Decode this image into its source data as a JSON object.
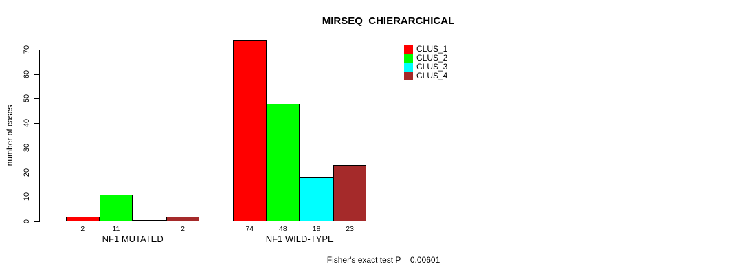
{
  "title": "MIRSEQ_CHIERARCHICAL",
  "chart_data": {
    "type": "bar",
    "title": "MIRSEQ_CHIERARCHICAL",
    "xlabel": "",
    "ylabel": "number of cases",
    "ylim": [
      0,
      70
    ],
    "yticks": [
      0,
      10,
      20,
      30,
      40,
      50,
      60,
      70
    ],
    "grid": false,
    "legend_position": "top-right",
    "categories": [
      "NF1 MUTATED",
      "NF1 WILD-TYPE"
    ],
    "series": [
      {
        "name": "CLUS_1",
        "color": "#FF0000",
        "values": [
          2,
          74
        ]
      },
      {
        "name": "CLUS_2",
        "color": "#00FF00",
        "values": [
          11,
          48
        ]
      },
      {
        "name": "CLUS_3",
        "color": "#00FFFF",
        "values": [
          0,
          18
        ]
      },
      {
        "name": "CLUS_4",
        "color": "#A52A2A",
        "values": [
          2,
          23
        ]
      }
    ],
    "bar_labels": [
      [
        "2",
        "11",
        "",
        "2"
      ],
      [
        "74",
        "48",
        "18",
        "23"
      ]
    ],
    "annotation": "Fisher's exact test P = 0.00601",
    "bar_edge_color": "#000000",
    "text_color": "#000000"
  }
}
